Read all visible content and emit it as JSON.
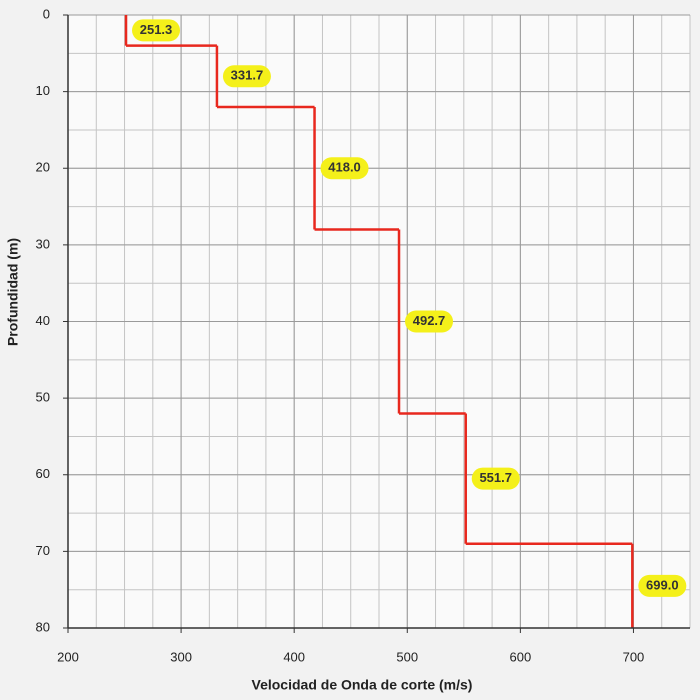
{
  "chart_data": {
    "type": "step",
    "xlabel": "Velocidad de Onda de corte (m/s)",
    "ylabel": "Profundidad (m)",
    "values": [
      251.3,
      331.7,
      418.0,
      492.7,
      551.7,
      699.0
    ],
    "value_labels": [
      "251.3",
      "331.7",
      "418.0",
      "492.7",
      "551.7",
      "699.0"
    ],
    "depths": [
      0,
      4,
      12,
      28,
      52,
      69,
      80
    ],
    "color": "#e8281e",
    "label_color": "#f4f01a",
    "xlim": [
      200,
      750
    ],
    "xticks": [
      200,
      300,
      400,
      500,
      600,
      700
    ],
    "ylim": [
      0,
      80
    ],
    "yticks": [
      0,
      10,
      20,
      30,
      40,
      50,
      60,
      70,
      80
    ],
    "y_inverted": true,
    "grid": true
  }
}
